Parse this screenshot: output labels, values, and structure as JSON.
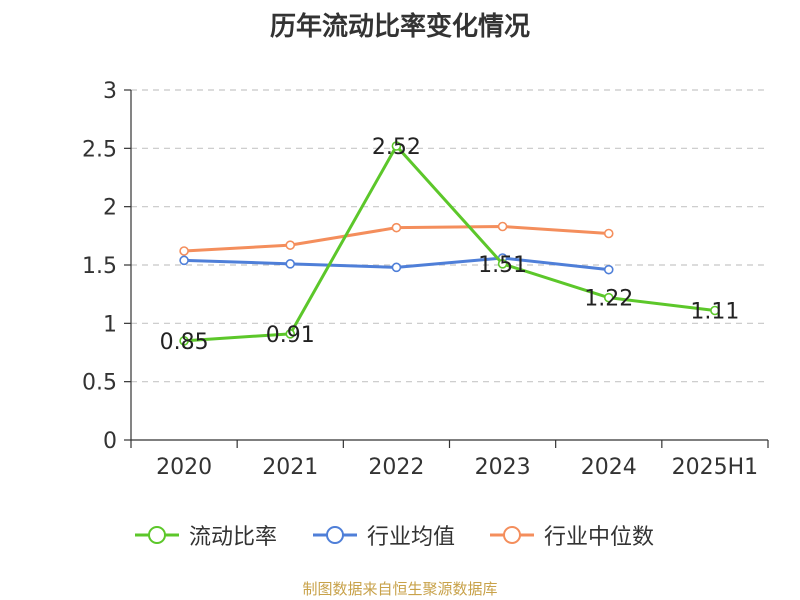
{
  "title": "历年流动比率变化情况",
  "source": "制图数据来自恒生聚源数据库",
  "colors": {
    "current_ratio": "#5cc72a",
    "industry_mean": "#4f7fd8",
    "industry_median": "#f48e5c",
    "axis": "#333333",
    "grid": "#c8c8c8"
  },
  "chart_data": {
    "type": "line",
    "title": "历年流动比率变化情况",
    "categories": [
      "2020",
      "2021",
      "2022",
      "2023",
      "2024",
      "2025H1"
    ],
    "ylim": [
      0,
      3
    ],
    "y_ticks": [
      "0",
      "0.5",
      "1",
      "1.5",
      "2",
      "2.5",
      "3"
    ],
    "grid": "horizontal-dashed",
    "legend_position": "bottom",
    "series": [
      {
        "name": "流动比率",
        "values": [
          0.85,
          0.91,
          2.52,
          1.51,
          1.22,
          1.11
        ],
        "labels": [
          "0.85",
          "0.91",
          "2.52",
          "1.51",
          "1.22",
          "1.11"
        ]
      },
      {
        "name": "行业均值",
        "values": [
          1.54,
          1.51,
          1.48,
          1.56,
          1.46,
          null
        ]
      },
      {
        "name": "行业中位数",
        "values": [
          1.62,
          1.67,
          1.82,
          1.83,
          1.77,
          null
        ]
      }
    ]
  }
}
